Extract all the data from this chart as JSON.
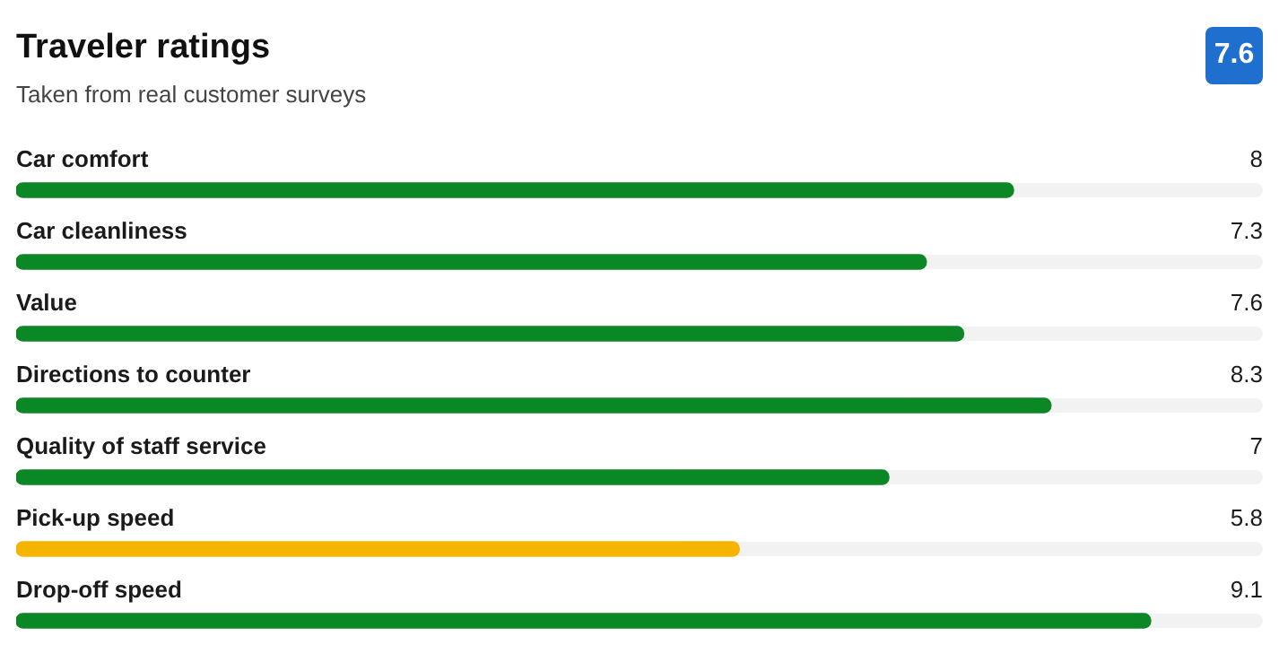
{
  "chart_data": {
    "type": "bar",
    "orientation": "horizontal",
    "title": "Traveler ratings",
    "subtitle": "Taken from real customer surveys",
    "annotations": [
      "7.6"
    ],
    "categories": [
      "Car comfort",
      "Car cleanliness",
      "Value",
      "Directions to counter",
      "Quality of staff service",
      "Pick-up speed",
      "Drop-off speed"
    ],
    "values": [
      8,
      7.3,
      7.6,
      8.3,
      7,
      5.8,
      9.1
    ],
    "colors": [
      "#0b8726",
      "#0b8726",
      "#0b8726",
      "#0b8726",
      "#0b8726",
      "#f4b400",
      "#0b8726"
    ],
    "xlim": [
      0,
      10
    ],
    "tick_labels": false,
    "data_labels": true,
    "grid": false,
    "legend": false
  }
}
